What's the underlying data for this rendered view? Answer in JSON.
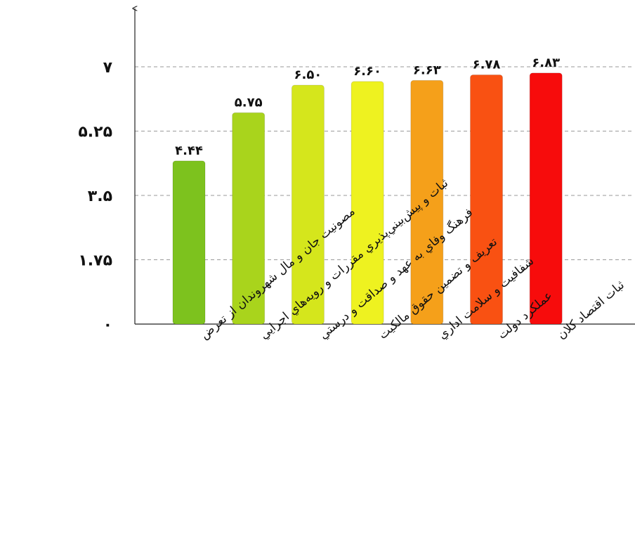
{
  "chart_data": {
    "type": "bar",
    "title": "",
    "xlabel": "",
    "ylabel": "",
    "categories": [
      "مصونيت جان و مال شهروندان از تعرض",
      "ثبات و پيش‌بيني‌پذيري مقررات و رويه‌هاي اجرايي",
      "فرهنگ وفاي به عهد و صداقت و درستي",
      "تعريف و تضمين حقوق مالكيت",
      "شفافيت و سلامت اداري",
      "عملكرد دولت",
      "ثبات اقتصاد كلان"
    ],
    "values": [
      4.44,
      5.75,
      6.5,
      6.6,
      6.63,
      6.78,
      6.83
    ],
    "value_labels": [
      "۴.۴۴",
      "۵.۷۵",
      "۶.۵۰",
      "۶.۶۰",
      "۶.۶۳",
      "۶.۷۸",
      "۶.۸۳"
    ],
    "colors": [
      "#7dc21e",
      "#a9d41c",
      "#d5e61c",
      "#eef220",
      "#f5a01a",
      "#f95112",
      "#f70c0c"
    ],
    "ylim": [
      0,
      7
    ],
    "yticks": [
      0,
      1.75,
      3.5,
      5.25,
      7
    ],
    "ytick_labels": [
      "۰",
      "۱.۷۵",
      "۳.۵",
      "۵.۲۵",
      "۷"
    ],
    "grid": true,
    "legend": "none"
  }
}
